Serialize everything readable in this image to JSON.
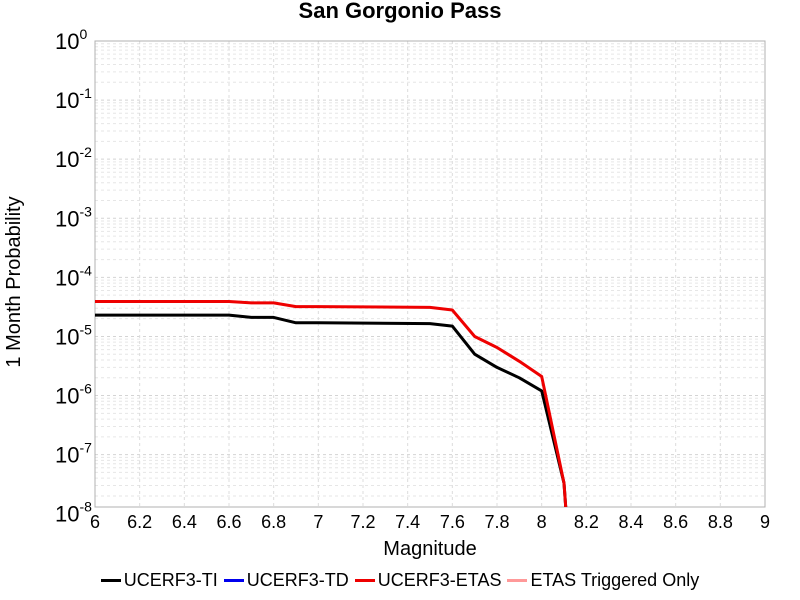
{
  "chart_data": {
    "type": "line",
    "title": "San Gorgonio Pass",
    "xlabel": "Magnitude",
    "ylabel": "1 Month Probability",
    "xlim": [
      6,
      9
    ],
    "ylim": [
      1.3e-08,
      1
    ],
    "y_scale": "log",
    "grid": true,
    "legend_position": "bottom",
    "x_ticks": [
      "6",
      "6.2",
      "6.4",
      "6.6",
      "6.8",
      "7",
      "7.2",
      "7.4",
      "7.6",
      "7.8",
      "8",
      "8.2",
      "8.4",
      "8.6",
      "8.8",
      "9"
    ],
    "y_ticks": [
      {
        "base": "10",
        "exp": "0"
      },
      {
        "base": "10",
        "exp": "-1"
      },
      {
        "base": "10",
        "exp": "-2"
      },
      {
        "base": "10",
        "exp": "-3"
      },
      {
        "base": "10",
        "exp": "-4"
      },
      {
        "base": "10",
        "exp": "-5"
      },
      {
        "base": "10",
        "exp": "-6"
      },
      {
        "base": "10",
        "exp": "-7"
      },
      {
        "base": "10",
        "exp": "-8"
      }
    ],
    "series": [
      {
        "name": "UCERF3-TI",
        "color": "#000000",
        "points": [
          [
            6.0,
            2.3e-05
          ],
          [
            6.6,
            2.3e-05
          ],
          [
            6.7,
            2.1e-05
          ],
          [
            6.8,
            2.1e-05
          ],
          [
            6.9,
            1.7e-05
          ],
          [
            7.0,
            1.7e-05
          ],
          [
            7.5,
            1.65e-05
          ],
          [
            7.6,
            1.5e-05
          ],
          [
            7.7,
            5e-06
          ],
          [
            7.8,
            3e-06
          ],
          [
            7.9,
            2e-06
          ],
          [
            8.0,
            1.2e-06
          ],
          [
            8.1,
            3.3e-08
          ],
          [
            8.11,
            1e-08
          ]
        ]
      },
      {
        "name": "UCERF3-TD",
        "color": "#0000ee",
        "points": []
      },
      {
        "name": "UCERF3-ETAS",
        "color": "#ee0000",
        "points": [
          [
            6.0,
            3.9e-05
          ],
          [
            6.6,
            3.9e-05
          ],
          [
            6.7,
            3.7e-05
          ],
          [
            6.8,
            3.7e-05
          ],
          [
            6.9,
            3.2e-05
          ],
          [
            7.0,
            3.2e-05
          ],
          [
            7.5,
            3.1e-05
          ],
          [
            7.6,
            2.8e-05
          ],
          [
            7.7,
            1e-05
          ],
          [
            7.8,
            6.5e-06
          ],
          [
            7.9,
            3.8e-06
          ],
          [
            8.0,
            2.1e-06
          ],
          [
            8.1,
            3.3e-08
          ],
          [
            8.11,
            1e-08
          ]
        ]
      },
      {
        "name": "ETAS Triggered Only",
        "color": "#ff9999",
        "points": []
      }
    ]
  }
}
